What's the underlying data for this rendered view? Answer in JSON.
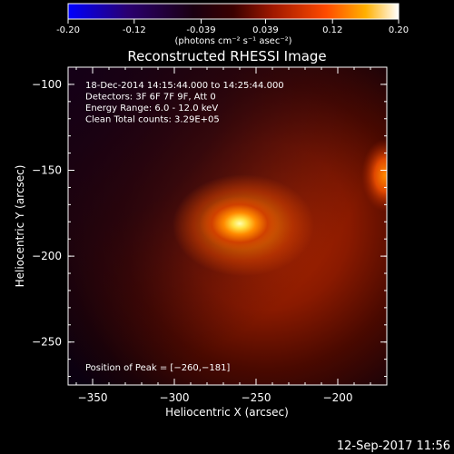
{
  "colorbar": {
    "ticks": [
      "-0.20",
      "-0.12",
      "-0.039",
      "0.039",
      "0.12",
      "0.20"
    ],
    "tick_values": [
      -0.2,
      -0.12,
      -0.039,
      0.039,
      0.12,
      0.2
    ],
    "range": [
      -0.2,
      0.2
    ],
    "unit_label": "(photons cm⁻² s⁻¹ asec⁻²)",
    "colors": [
      "#0000ff",
      "#20004a",
      "#000000",
      "#7a0a00",
      "#ff3000",
      "#ffa000",
      "#ffffff"
    ]
  },
  "chart_data": {
    "type": "heatmap",
    "title": "Reconstructed RHESSI Image",
    "xlabel": "Heliocentric X (arcsec)",
    "ylabel": "Heliocentric Y (arcsec)",
    "xlim": [
      -365,
      -170
    ],
    "ylim": [
      -275,
      -90
    ],
    "xticks": [
      -350,
      -300,
      -250,
      -200
    ],
    "yticks": [
      -100,
      -150,
      -200,
      -250
    ],
    "xtick_labels": [
      "−350",
      "−300",
      "−250",
      "−200"
    ],
    "ytick_labels": [
      "−100",
      "−150",
      "−200",
      "−250"
    ],
    "info_lines": [
      "18-Dec-2014 14:15:44.000 to 14:25:44.000",
      "Detectors: 3F 6F 7F 9F, Att 0",
      "Energy Range: 6.0 - 12.0 keV",
      "Clean    Total counts: 3.29E+05"
    ],
    "peak_text": "Position of Peak = [−260,−181]",
    "peak": [
      -260,
      -181
    ],
    "sources": [
      {
        "x": -260,
        "y": -181,
        "intensity": 0.2
      },
      {
        "x": -171,
        "y": -153,
        "intensity": 0.13
      }
    ]
  },
  "footer": {
    "timestamp": "12-Sep-2017 11:56"
  }
}
